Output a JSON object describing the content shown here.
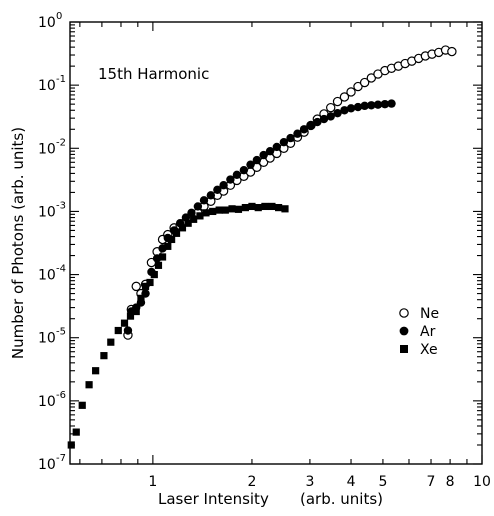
{
  "chart_data": {
    "type": "scatter",
    "annotation": "15th Harmonic",
    "xlabel": "Laser Intensity",
    "xlabel_units": "(arb. units)",
    "ylabel": "Number of Photons (arb. units)",
    "x_scale": "log",
    "y_scale": "log",
    "xlim": [
      0.56,
      10
    ],
    "ylim": [
      1e-07,
      1
    ],
    "x_tick_labels": [
      {
        "value": 1,
        "label": "1"
      },
      {
        "value": 2,
        "label": "2"
      },
      {
        "value": 3,
        "label": "3"
      },
      {
        "value": 4,
        "label": "4"
      },
      {
        "value": 5,
        "label": "5"
      },
      {
        "value": 7,
        "label": "7"
      },
      {
        "value": 8,
        "label": "8"
      },
      {
        "value": 10,
        "label": "10"
      }
    ],
    "y_tick_labels": [
      {
        "exp": -7,
        "base": "10",
        "sup": "-7"
      },
      {
        "exp": -6,
        "base": "10",
        "sup": "-6"
      },
      {
        "exp": -5,
        "base": "10",
        "sup": "-5"
      },
      {
        "exp": -4,
        "base": "10",
        "sup": "-4"
      },
      {
        "exp": -3,
        "base": "10",
        "sup": "-3"
      },
      {
        "exp": -2,
        "base": "10",
        "sup": "-2"
      },
      {
        "exp": -1,
        "base": "10",
        "sup": "-1"
      },
      {
        "exp": 0,
        "base": "10",
        "sup": "0"
      }
    ],
    "grid": false,
    "legend_position": "right-middle",
    "series": [
      {
        "name": "Ne",
        "marker": "open-circle",
        "color": "#000000",
        "points": [
          [
            0.84,
            1.1e-05
          ],
          [
            0.86,
            2.8e-05
          ],
          [
            0.89,
            6.5e-05
          ],
          [
            0.92,
            5e-05
          ],
          [
            0.95,
            7e-05
          ],
          [
            0.99,
            0.000155
          ],
          [
            1.03,
            0.00023
          ],
          [
            1.07,
            0.00036
          ],
          [
            1.11,
            0.00043
          ],
          [
            1.16,
            0.00055
          ],
          [
            1.21,
            0.0006
          ],
          [
            1.26,
            0.0007
          ],
          [
            1.31,
            0.0008
          ],
          [
            1.37,
            0.00095
          ],
          [
            1.43,
            0.0012
          ],
          [
            1.5,
            0.00145
          ],
          [
            1.57,
            0.0018
          ],
          [
            1.64,
            0.0021
          ],
          [
            1.72,
            0.0026
          ],
          [
            1.8,
            0.0031
          ],
          [
            1.89,
            0.0036
          ],
          [
            1.98,
            0.0042
          ],
          [
            2.07,
            0.005
          ],
          [
            2.17,
            0.006
          ],
          [
            2.27,
            0.007
          ],
          [
            2.38,
            0.0083
          ],
          [
            2.5,
            0.01
          ],
          [
            2.62,
            0.012
          ],
          [
            2.75,
            0.015
          ],
          [
            2.88,
            0.018
          ],
          [
            3.02,
            0.023
          ],
          [
            3.16,
            0.029
          ],
          [
            3.31,
            0.035
          ],
          [
            3.47,
            0.044
          ],
          [
            3.64,
            0.055
          ],
          [
            3.82,
            0.065
          ],
          [
            4.0,
            0.078
          ],
          [
            4.2,
            0.095
          ],
          [
            4.4,
            0.11
          ],
          [
            4.61,
            0.13
          ],
          [
            4.83,
            0.15
          ],
          [
            5.07,
            0.17
          ],
          [
            5.31,
            0.185
          ],
          [
            5.57,
            0.2
          ],
          [
            5.84,
            0.22
          ],
          [
            6.12,
            0.24
          ],
          [
            6.42,
            0.265
          ],
          [
            6.73,
            0.29
          ],
          [
            7.05,
            0.31
          ],
          [
            7.39,
            0.33
          ],
          [
            7.75,
            0.36
          ],
          [
            8.1,
            0.34
          ]
        ]
      },
      {
        "name": "Ar",
        "marker": "filled-circle",
        "color": "#000000",
        "points": [
          [
            0.84,
            1.3e-05
          ],
          [
            0.86,
            2.6e-05
          ],
          [
            0.89,
            3e-05
          ],
          [
            0.92,
            3.6e-05
          ],
          [
            0.95,
            5e-05
          ],
          [
            0.99,
            0.00011
          ],
          [
            1.03,
            0.00018
          ],
          [
            1.07,
            0.00026
          ],
          [
            1.11,
            0.00038
          ],
          [
            1.16,
            0.0005
          ],
          [
            1.21,
            0.00065
          ],
          [
            1.26,
            0.0008
          ],
          [
            1.31,
            0.00095
          ],
          [
            1.37,
            0.0012
          ],
          [
            1.43,
            0.0015
          ],
          [
            1.5,
            0.0018
          ],
          [
            1.57,
            0.0022
          ],
          [
            1.64,
            0.0026
          ],
          [
            1.72,
            0.0032
          ],
          [
            1.8,
            0.0038
          ],
          [
            1.89,
            0.0045
          ],
          [
            1.98,
            0.0055
          ],
          [
            2.07,
            0.0065
          ],
          [
            2.17,
            0.0078
          ],
          [
            2.27,
            0.009
          ],
          [
            2.38,
            0.0105
          ],
          [
            2.5,
            0.0125
          ],
          [
            2.62,
            0.0145
          ],
          [
            2.75,
            0.017
          ],
          [
            2.88,
            0.02
          ],
          [
            3.02,
            0.023
          ],
          [
            3.16,
            0.026
          ],
          [
            3.31,
            0.029
          ],
          [
            3.47,
            0.032
          ],
          [
            3.64,
            0.036
          ],
          [
            3.82,
            0.04
          ],
          [
            4.0,
            0.043
          ],
          [
            4.2,
            0.045
          ],
          [
            4.4,
            0.047
          ],
          [
            4.61,
            0.048
          ],
          [
            4.83,
            0.049
          ],
          [
            5.07,
            0.05
          ],
          [
            5.31,
            0.051
          ]
        ]
      },
      {
        "name": "Xe",
        "marker": "filled-square",
        "color": "#000000",
        "points": [
          [
            0.565,
            2e-07
          ],
          [
            0.585,
            3.2e-07
          ],
          [
            0.61,
            8.5e-07
          ],
          [
            0.64,
            1.8e-06
          ],
          [
            0.67,
            3e-06
          ],
          [
            0.71,
            5.2e-06
          ],
          [
            0.745,
            8.5e-06
          ],
          [
            0.785,
            1.3e-05
          ],
          [
            0.82,
            1.7e-05
          ],
          [
            0.855,
            2.2e-05
          ],
          [
            0.89,
            2.6e-05
          ],
          [
            0.92,
            4.2e-05
          ],
          [
            0.95,
            6.5e-05
          ],
          [
            0.98,
            7.5e-05
          ],
          [
            1.01,
            0.0001
          ],
          [
            1.04,
            0.00014
          ],
          [
            1.07,
            0.00019
          ],
          [
            1.11,
            0.00028
          ],
          [
            1.14,
            0.00036
          ],
          [
            1.18,
            0.00045
          ],
          [
            1.23,
            0.00055
          ],
          [
            1.28,
            0.00065
          ],
          [
            1.33,
            0.00075
          ],
          [
            1.39,
            0.00085
          ],
          [
            1.45,
            0.00095
          ],
          [
            1.52,
            0.001
          ],
          [
            1.59,
            0.00105
          ],
          [
            1.66,
            0.00105
          ],
          [
            1.74,
            0.0011
          ],
          [
            1.82,
            0.00108
          ],
          [
            1.91,
            0.00115
          ],
          [
            2.0,
            0.0012
          ],
          [
            2.09,
            0.00115
          ],
          [
            2.19,
            0.0012
          ],
          [
            2.3,
            0.0012
          ],
          [
            2.41,
            0.00115
          ],
          [
            2.52,
            0.0011
          ]
        ]
      }
    ]
  }
}
